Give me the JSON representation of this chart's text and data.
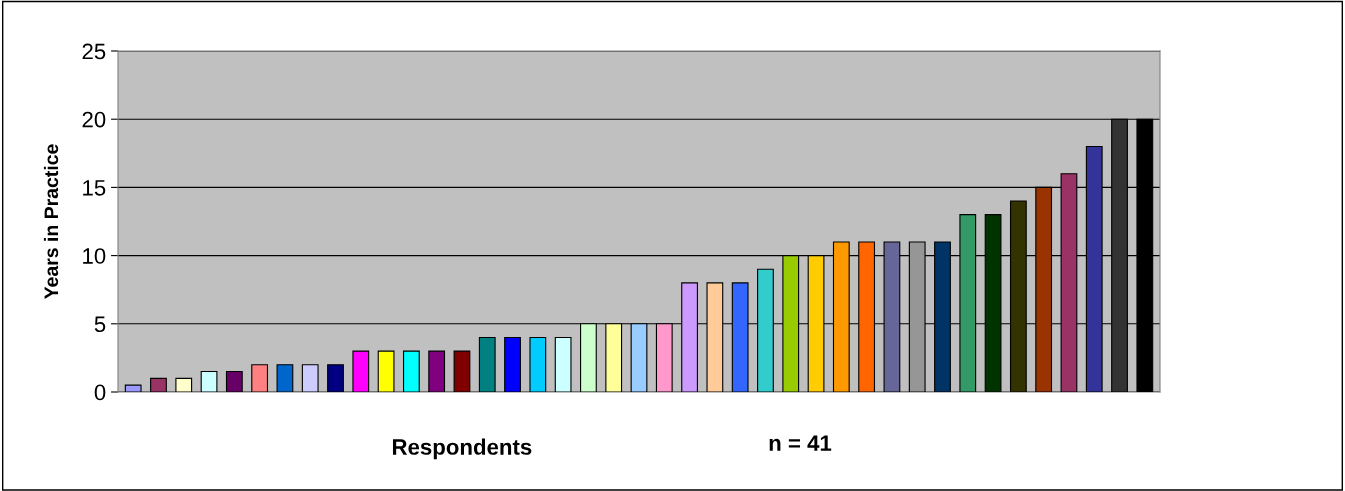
{
  "chart_data": {
    "type": "bar",
    "xlabel": "Respondents",
    "ylabel": "Years in Practice",
    "annotations": [
      "n = 41"
    ],
    "categories": [
      null,
      null,
      null,
      null,
      null,
      null,
      null,
      null,
      null,
      null,
      null,
      null,
      null,
      null,
      null,
      null,
      null,
      null,
      null,
      null,
      null,
      null,
      null,
      null,
      null,
      null,
      null,
      null,
      null,
      null,
      null,
      null,
      null,
      null,
      null,
      null,
      null,
      null,
      null,
      null,
      null
    ],
    "values": [
      0.5,
      1,
      1,
      1.5,
      1.5,
      2,
      2,
      2,
      2,
      3,
      3,
      3,
      3,
      3,
      4,
      4,
      4,
      4,
      5,
      5,
      5,
      5,
      8,
      8,
      8,
      9,
      10,
      10,
      11,
      11,
      11,
      11,
      11,
      13,
      13,
      14,
      15,
      16,
      18,
      20,
      20
    ],
    "colors": [
      "#9999ff",
      "#993366",
      "#ffffcc",
      "#ccffff",
      "#660066",
      "#ff8080",
      "#0066cc",
      "#ccccff",
      "#000080",
      "#ff00ff",
      "#ffff00",
      "#00ffff",
      "#800080",
      "#800000",
      "#008080",
      "#0000ff",
      "#00ccff",
      "#ccffff",
      "#ccffcc",
      "#ffff99",
      "#99ccff",
      "#ff99cc",
      "#cc99ff",
      "#ffcc99",
      "#3366ff",
      "#33cccc",
      "#99cc00",
      "#ffcc00",
      "#ff9900",
      "#ff6600",
      "#666699",
      "#969696",
      "#003366",
      "#339966",
      "#003300",
      "#333300",
      "#993300",
      "#993366",
      "#333399",
      "#333333",
      "#000000"
    ],
    "ylim": [
      0,
      25
    ],
    "yticks": [
      0,
      5,
      10,
      15,
      20,
      25
    ],
    "grid": "y",
    "legend": false
  }
}
